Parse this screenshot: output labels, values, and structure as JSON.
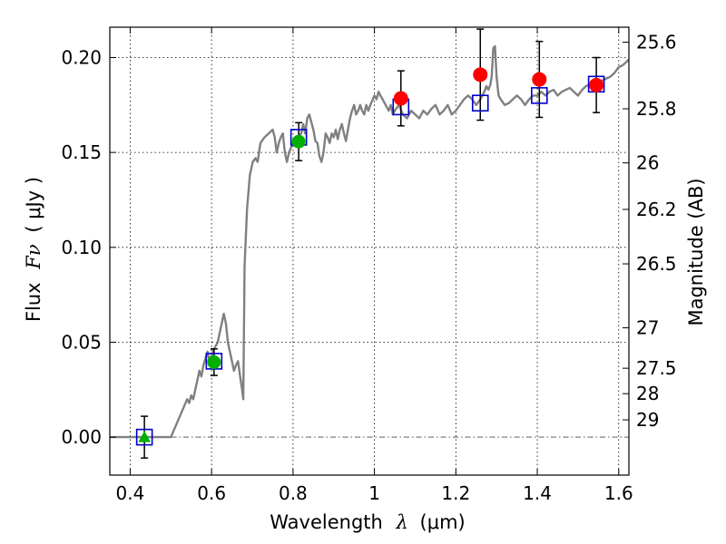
{
  "chart_data": {
    "type": "scatter",
    "title": "",
    "xlabel": {
      "prefix": "Wavelength",
      "symbol": "λ",
      "unit": "(μm)"
    },
    "ylabel": {
      "prefix": "Flux",
      "symbol": "Fν",
      "unit": "( μJy )"
    },
    "y2label": "Magnitude (AB)",
    "xlim": [
      0.35,
      1.625
    ],
    "ylim": [
      -0.02,
      0.216
    ],
    "grid": true,
    "x_ticks": [
      {
        "value": 0.4,
        "label": "0.4"
      },
      {
        "value": 0.6,
        "label": "0.6"
      },
      {
        "value": 0.8,
        "label": "0.8"
      },
      {
        "value": 1.0,
        "label": "1"
      },
      {
        "value": 1.2,
        "label": "1.2"
      },
      {
        "value": 1.4,
        "label": "1.4"
      },
      {
        "value": 1.6,
        "label": "1.6"
      }
    ],
    "y_ticks": [
      {
        "value": 0.0,
        "label": "0.00"
      },
      {
        "value": 0.05,
        "label": "0.05"
      },
      {
        "value": 0.1,
        "label": "0.10"
      },
      {
        "value": 0.15,
        "label": "0.15"
      },
      {
        "value": 0.2,
        "label": "0.20"
      }
    ],
    "mag_ticks": [
      {
        "flux": 0.2081,
        "label": "25.6"
      },
      {
        "flux": 0.173,
        "label": "25.8"
      },
      {
        "flux": 0.1445,
        "label": "26"
      },
      {
        "flux": 0.12,
        "label": "26.2"
      },
      {
        "flux": 0.0913,
        "label": "26.5"
      },
      {
        "flux": 0.0576,
        "label": "27"
      },
      {
        "flux": 0.0363,
        "label": "27.5"
      },
      {
        "flux": 0.0229,
        "label": "28"
      },
      {
        "flux": 0.0091,
        "label": "29"
      }
    ],
    "model_sed": {
      "color": "#808080",
      "points": [
        [
          0.35,
          0.0
        ],
        [
          0.5,
          0.0
        ],
        [
          0.52,
          0.01
        ],
        [
          0.54,
          0.02
        ],
        [
          0.545,
          0.018
        ],
        [
          0.55,
          0.022
        ],
        [
          0.555,
          0.02
        ],
        [
          0.56,
          0.025
        ],
        [
          0.565,
          0.03
        ],
        [
          0.57,
          0.035
        ],
        [
          0.575,
          0.032
        ],
        [
          0.58,
          0.038
        ],
        [
          0.59,
          0.045
        ],
        [
          0.595,
          0.04
        ],
        [
          0.6,
          0.043
        ],
        [
          0.605,
          0.046
        ],
        [
          0.61,
          0.048
        ],
        [
          0.615,
          0.05
        ],
        [
          0.62,
          0.055
        ],
        [
          0.625,
          0.06
        ],
        [
          0.63,
          0.065
        ],
        [
          0.635,
          0.06
        ],
        [
          0.64,
          0.05
        ],
        [
          0.645,
          0.045
        ],
        [
          0.65,
          0.04
        ],
        [
          0.655,
          0.035
        ],
        [
          0.66,
          0.038
        ],
        [
          0.665,
          0.04
        ],
        [
          0.67,
          0.032
        ],
        [
          0.675,
          0.025
        ],
        [
          0.678,
          0.02
        ],
        [
          0.681,
          0.09
        ],
        [
          0.687,
          0.12
        ],
        [
          0.694,
          0.138
        ],
        [
          0.701,
          0.145
        ],
        [
          0.708,
          0.147
        ],
        [
          0.713,
          0.145
        ],
        [
          0.72,
          0.155
        ],
        [
          0.73,
          0.158
        ],
        [
          0.74,
          0.16
        ],
        [
          0.75,
          0.162
        ],
        [
          0.755,
          0.158
        ],
        [
          0.76,
          0.15
        ],
        [
          0.765,
          0.155
        ],
        [
          0.77,
          0.158
        ],
        [
          0.775,
          0.16
        ],
        [
          0.78,
          0.15
        ],
        [
          0.785,
          0.145
        ],
        [
          0.79,
          0.15
        ],
        [
          0.8,
          0.155
        ],
        [
          0.81,
          0.158
        ],
        [
          0.82,
          0.16
        ],
        [
          0.825,
          0.165
        ],
        [
          0.83,
          0.16
        ],
        [
          0.835,
          0.168
        ],
        [
          0.84,
          0.17
        ],
        [
          0.845,
          0.166
        ],
        [
          0.85,
          0.162
        ],
        [
          0.855,
          0.156
        ],
        [
          0.86,
          0.155
        ],
        [
          0.865,
          0.148
        ],
        [
          0.87,
          0.145
        ],
        [
          0.875,
          0.15
        ],
        [
          0.88,
          0.16
        ],
        [
          0.885,
          0.158
        ],
        [
          0.89,
          0.155
        ],
        [
          0.895,
          0.16
        ],
        [
          0.9,
          0.158
        ],
        [
          0.905,
          0.162
        ],
        [
          0.91,
          0.157
        ],
        [
          0.915,
          0.162
        ],
        [
          0.92,
          0.165
        ],
        [
          0.925,
          0.16
        ],
        [
          0.93,
          0.156
        ],
        [
          0.935,
          0.162
        ],
        [
          0.94,
          0.168
        ],
        [
          0.945,
          0.172
        ],
        [
          0.95,
          0.175
        ],
        [
          0.955,
          0.17
        ],
        [
          0.96,
          0.172
        ],
        [
          0.965,
          0.175
        ],
        [
          0.97,
          0.172
        ],
        [
          0.975,
          0.17
        ],
        [
          0.98,
          0.175
        ],
        [
          0.985,
          0.172
        ],
        [
          0.99,
          0.175
        ],
        [
          1.0,
          0.18
        ],
        [
          1.005,
          0.178
        ],
        [
          1.01,
          0.182
        ],
        [
          1.015,
          0.18
        ],
        [
          1.02,
          0.178
        ],
        [
          1.025,
          0.176
        ],
        [
          1.03,
          0.174
        ],
        [
          1.035,
          0.172
        ],
        [
          1.04,
          0.175
        ],
        [
          1.045,
          0.17
        ],
        [
          1.05,
          0.172
        ],
        [
          1.06,
          0.175
        ],
        [
          1.07,
          0.17
        ],
        [
          1.08,
          0.168
        ],
        [
          1.09,
          0.172
        ],
        [
          1.1,
          0.17
        ],
        [
          1.11,
          0.168
        ],
        [
          1.12,
          0.172
        ],
        [
          1.13,
          0.17
        ],
        [
          1.14,
          0.173
        ],
        [
          1.15,
          0.175
        ],
        [
          1.16,
          0.17
        ],
        [
          1.17,
          0.172
        ],
        [
          1.18,
          0.175
        ],
        [
          1.19,
          0.17
        ],
        [
          1.2,
          0.172
        ],
        [
          1.21,
          0.175
        ],
        [
          1.22,
          0.178
        ],
        [
          1.23,
          0.18
        ],
        [
          1.24,
          0.178
        ],
        [
          1.25,
          0.175
        ],
        [
          1.26,
          0.178
        ],
        [
          1.265,
          0.18
        ],
        [
          1.27,
          0.182
        ],
        [
          1.275,
          0.185
        ],
        [
          1.28,
          0.183
        ],
        [
          1.285,
          0.186
        ],
        [
          1.288,
          0.19
        ],
        [
          1.292,
          0.205
        ],
        [
          1.296,
          0.206
        ],
        [
          1.3,
          0.19
        ],
        [
          1.305,
          0.18
        ],
        [
          1.31,
          0.178
        ],
        [
          1.32,
          0.175
        ],
        [
          1.33,
          0.176
        ],
        [
          1.34,
          0.178
        ],
        [
          1.35,
          0.18
        ],
        [
          1.36,
          0.178
        ],
        [
          1.37,
          0.175
        ],
        [
          1.38,
          0.178
        ],
        [
          1.39,
          0.18
        ],
        [
          1.4,
          0.18
        ],
        [
          1.41,
          0.182
        ],
        [
          1.42,
          0.18
        ],
        [
          1.43,
          0.182
        ],
        [
          1.44,
          0.183
        ],
        [
          1.45,
          0.18
        ],
        [
          1.46,
          0.182
        ],
        [
          1.47,
          0.183
        ],
        [
          1.48,
          0.184
        ],
        [
          1.49,
          0.182
        ],
        [
          1.5,
          0.18
        ],
        [
          1.51,
          0.183
        ],
        [
          1.52,
          0.185
        ],
        [
          1.53,
          0.186
        ],
        [
          1.54,
          0.185
        ],
        [
          1.55,
          0.187
        ],
        [
          1.56,
          0.188
        ],
        [
          1.57,
          0.189
        ],
        [
          1.58,
          0.19
        ],
        [
          1.59,
          0.192
        ],
        [
          1.6,
          0.195
        ],
        [
          1.61,
          0.196
        ],
        [
          1.62,
          0.198
        ],
        [
          1.625,
          0.199
        ]
      ]
    },
    "model_photometry": {
      "color": "#0000cc",
      "points": [
        {
          "x": 0.435,
          "y": 0.0
        },
        {
          "x": 0.606,
          "y": 0.04
        },
        {
          "x": 0.814,
          "y": 0.158
        },
        {
          "x": 1.065,
          "y": 0.174
        },
        {
          "x": 1.26,
          "y": 0.176
        },
        {
          "x": 1.405,
          "y": 0.18
        },
        {
          "x": 1.545,
          "y": 0.186
        }
      ]
    },
    "optical_detections": {
      "color": "#00b000",
      "points": [
        {
          "x": 0.606,
          "y": 0.0395,
          "err": 0.007
        },
        {
          "x": 0.814,
          "y": 0.1557,
          "err": 0.01
        }
      ]
    },
    "optical_upper_limit": {
      "color": "#00b000",
      "points": [
        {
          "x": 0.435,
          "y": 0.0,
          "err": 0.011
        }
      ]
    },
    "nir_detections": {
      "color": "#ff0000",
      "points": [
        {
          "x": 1.065,
          "y": 0.1785,
          "err": 0.0145
        },
        {
          "x": 1.26,
          "y": 0.191,
          "err": 0.024
        },
        {
          "x": 1.405,
          "y": 0.1885,
          "err": 0.02
        },
        {
          "x": 1.545,
          "y": 0.1855,
          "err": 0.0145
        }
      ]
    }
  }
}
